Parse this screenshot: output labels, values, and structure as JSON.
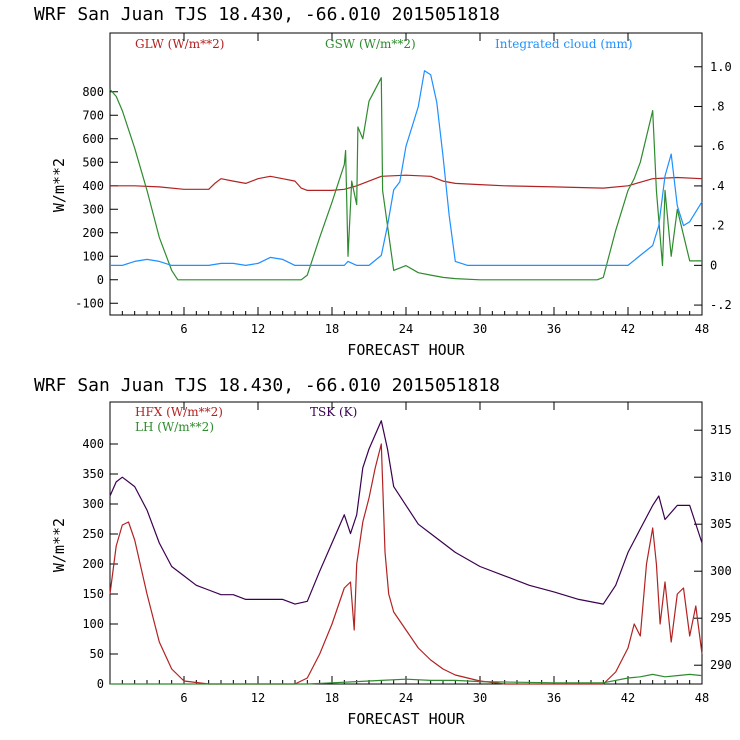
{
  "chart_data": [
    {
      "type": "line",
      "title": "WRF  San Juan TJS  18.430, -66.010  2015051818",
      "xlabel": "FORECAST HOUR",
      "ylabel": "W/m**2",
      "xlim": [
        0,
        48
      ],
      "ylim": [
        -150,
        1050
      ],
      "xticks": [
        6,
        12,
        18,
        24,
        30,
        36,
        42,
        48
      ],
      "yticks": [
        -100,
        0,
        100,
        200,
        300,
        400,
        500,
        600,
        700,
        800
      ],
      "y2ticks": [
        "-.2",
        "0",
        ".2",
        ".4",
        ".6",
        ".8",
        "1.0"
      ],
      "y2lim": [
        -0.25,
        1.17
      ],
      "series": [
        {
          "name": "GLW (W/m**2)",
          "color": "#b22222",
          "axis": "left",
          "x": [
            0,
            2,
            4,
            6,
            8,
            8.5,
            9,
            10,
            11,
            12,
            13,
            14,
            15,
            15.5,
            16,
            18,
            19,
            20,
            22,
            24,
            26,
            27,
            28,
            30,
            32,
            36,
            40,
            42,
            44,
            46,
            48
          ],
          "y": [
            400,
            400,
            395,
            385,
            385,
            410,
            430,
            420,
            410,
            430,
            440,
            430,
            420,
            390,
            380,
            380,
            385,
            400,
            440,
            445,
            440,
            420,
            410,
            405,
            400,
            395,
            390,
            400,
            430,
            435,
            430
          ]
        },
        {
          "name": "GSW (W/m**2)",
          "color": "#2e8b2e",
          "axis": "left",
          "x": [
            0,
            0.5,
            1,
            2,
            3,
            4,
            5,
            5.5,
            6,
            15.5,
            16,
            17,
            18,
            19,
            19.1,
            19.3,
            19.6,
            20,
            20.1,
            20.5,
            21,
            22,
            22.1,
            22.5,
            23,
            24,
            25,
            26,
            27,
            28,
            30,
            39.5,
            40,
            41,
            42,
            42.5,
            43,
            44,
            44.3,
            44.8,
            45,
            45.5,
            46,
            47,
            48
          ],
          "y": [
            810,
            780,
            720,
            560,
            380,
            180,
            40,
            0,
            0,
            0,
            20,
            180,
            330,
            490,
            550,
            100,
            420,
            320,
            650,
            600,
            760,
            860,
            380,
            230,
            40,
            60,
            30,
            20,
            10,
            5,
            0,
            0,
            10,
            210,
            380,
            430,
            500,
            720,
            380,
            60,
            380,
            100,
            300,
            80,
            80
          ]
        },
        {
          "name": "Integrated cloud (mm)",
          "color": "#1e90ff",
          "axis": "right",
          "x": [
            0,
            1,
            2,
            3,
            4,
            5,
            6,
            8,
            9,
            10,
            11,
            12,
            13,
            14,
            15,
            18,
            19,
            19.3,
            20,
            21,
            22,
            22.5,
            23,
            23.5,
            24,
            24.5,
            25,
            25.5,
            26,
            26.5,
            27,
            27.5,
            28,
            29,
            30,
            36,
            40,
            42,
            43,
            44,
            44.5,
            45,
            45.5,
            46,
            46.5,
            47,
            48
          ],
          "y": [
            0,
            0,
            0.02,
            0.03,
            0.02,
            0,
            0,
            0,
            0.01,
            0.01,
            0,
            0.01,
            0.04,
            0.03,
            0,
            0,
            0,
            0.02,
            0,
            0,
            0.05,
            0.2,
            0.38,
            0.42,
            0.6,
            0.7,
            0.8,
            0.98,
            0.96,
            0.82,
            0.55,
            0.25,
            0.02,
            0,
            0,
            0,
            0,
            0,
            0.05,
            0.1,
            0.2,
            0.45,
            0.56,
            0.3,
            0.2,
            0.22,
            0.32
          ]
        }
      ]
    },
    {
      "type": "line",
      "title": "WRF  San Juan TJS  18.430, -66.010  2015051818",
      "xlabel": "FORECAST HOUR",
      "ylabel": "W/m**2",
      "xlim": [
        0,
        48
      ],
      "ylim": [
        0,
        470
      ],
      "xticks": [
        6,
        12,
        18,
        24,
        30,
        36,
        42,
        48
      ],
      "yticks": [
        0,
        50,
        100,
        150,
        200,
        250,
        300,
        350,
        400
      ],
      "y2ticks": [
        "290",
        "295",
        "300",
        "305",
        "310",
        "315"
      ],
      "y2lim": [
        288,
        318
      ],
      "series": [
        {
          "name": "HFX (W/m**2)",
          "color": "#b22222",
          "axis": "left",
          "x": [
            0,
            0.5,
            1,
            1.5,
            2,
            3,
            4,
            5,
            6,
            8,
            12,
            15,
            16,
            17,
            18,
            19,
            19.5,
            19.8,
            20,
            20.5,
            21,
            21.5,
            22,
            22.3,
            22.6,
            23,
            24,
            25,
            26,
            27,
            28,
            30,
            32,
            36,
            40,
            41,
            42,
            42.5,
            43,
            43.5,
            44,
            44.3,
            44.6,
            45,
            45.5,
            46,
            46.5,
            47,
            47.5,
            48
          ],
          "y": [
            150,
            230,
            265,
            270,
            240,
            150,
            70,
            25,
            5,
            0,
            0,
            0,
            10,
            50,
            100,
            160,
            170,
            90,
            200,
            270,
            310,
            360,
            400,
            220,
            150,
            120,
            90,
            60,
            40,
            25,
            15,
            5,
            0,
            0,
            0,
            20,
            60,
            100,
            80,
            200,
            260,
            200,
            100,
            170,
            70,
            150,
            160,
            80,
            130,
            50
          ]
        },
        {
          "name": "LH (W/m**2)",
          "color": "#2e8b2e",
          "axis": "left",
          "x": [
            0,
            16,
            18,
            20,
            22,
            24,
            26,
            28,
            30,
            36,
            40,
            42,
            43,
            44,
            45,
            46,
            47,
            48
          ],
          "y": [
            0,
            0,
            2,
            4,
            6,
            8,
            6,
            6,
            4,
            2,
            2,
            10,
            12,
            16,
            12,
            14,
            16,
            14
          ]
        },
        {
          "name": "TSK (K)",
          "color": "#3b0050",
          "axis": "right",
          "x": [
            0,
            0.5,
            1,
            2,
            3,
            4,
            5,
            6,
            7,
            8,
            9,
            10,
            11,
            12,
            13,
            14,
            15,
            16,
            17,
            18,
            19,
            19.5,
            20,
            20.5,
            21,
            22,
            22.5,
            23,
            24,
            25,
            26,
            27,
            28,
            30,
            32,
            34,
            36,
            38,
            40,
            41,
            42,
            43,
            44,
            44.5,
            45,
            46,
            47,
            48
          ],
          "y": [
            308,
            309.5,
            310,
            309,
            306.5,
            303,
            300.5,
            299.5,
            298.5,
            298,
            297.5,
            297.5,
            297,
            297,
            297,
            297,
            296.5,
            296.8,
            300,
            303,
            306,
            304,
            306,
            311,
            313,
            316,
            313,
            309,
            307,
            305,
            304,
            303,
            302,
            300.5,
            299.5,
            298.5,
            297.8,
            297,
            296.5,
            298.5,
            302,
            304.5,
            307,
            308,
            305.5,
            307,
            307,
            303
          ]
        }
      ]
    }
  ]
}
